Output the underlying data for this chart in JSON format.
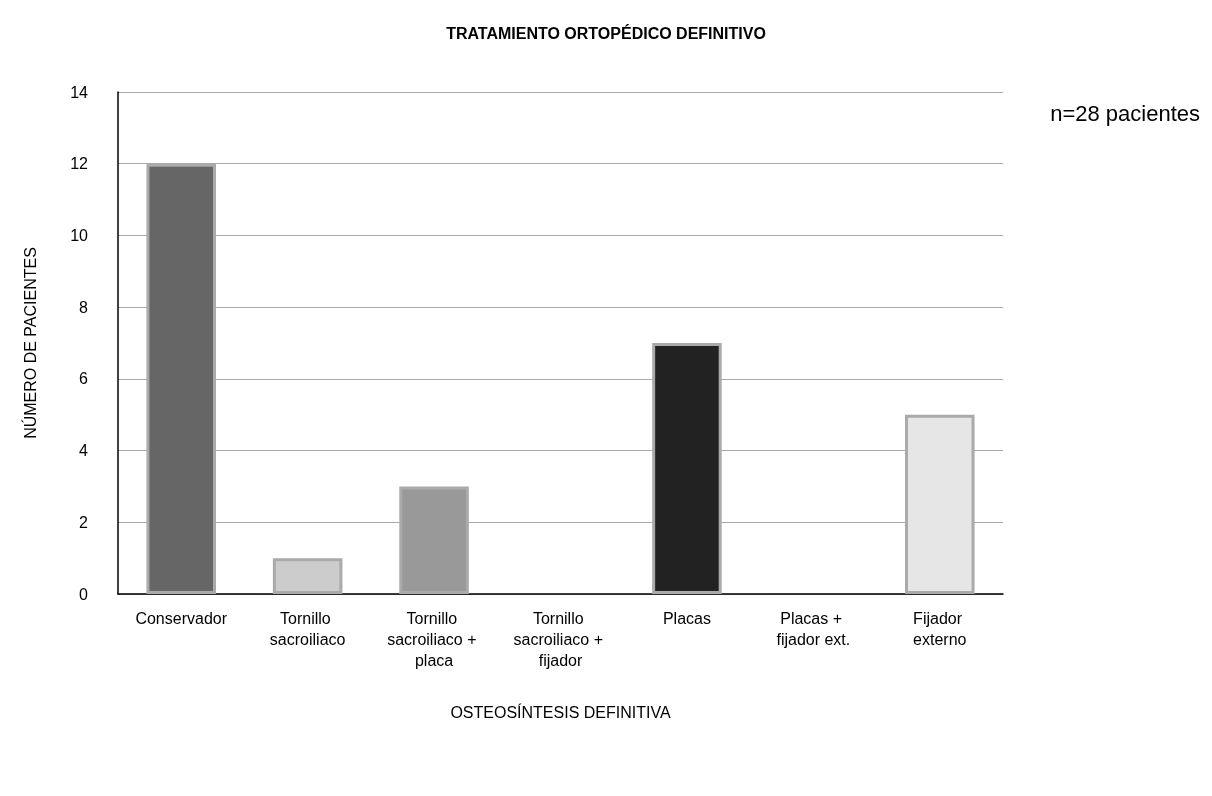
{
  "chart_data": {
    "type": "bar",
    "title": "TRATAMIENTO ORTOPÉDICO DEFINITIVO",
    "xlabel": "OSTEOSÍNTESIS DEFINITIVA",
    "ylabel": "NÚMERO DE PACIENTES",
    "annotations": [
      "n=28 pacientes"
    ],
    "categories": [
      "Conservador",
      "Tornillo sacroiliaco",
      "Tornillo sacroiliaco + placa",
      "Tornillo sacroiliaco + fijador",
      "Placas",
      "Placas + fijador ext.",
      "Fijador externo"
    ],
    "values": [
      12,
      1,
      3,
      0,
      7,
      0,
      5
    ],
    "colors": [
      "#666666",
      "#cccccc",
      "#999999",
      null,
      "#222222",
      null,
      "#e6e6e6"
    ],
    "ylim": [
      0,
      14
    ],
    "yticks": [
      0,
      2,
      4,
      6,
      8,
      10,
      12,
      14
    ],
    "grid": "y"
  }
}
